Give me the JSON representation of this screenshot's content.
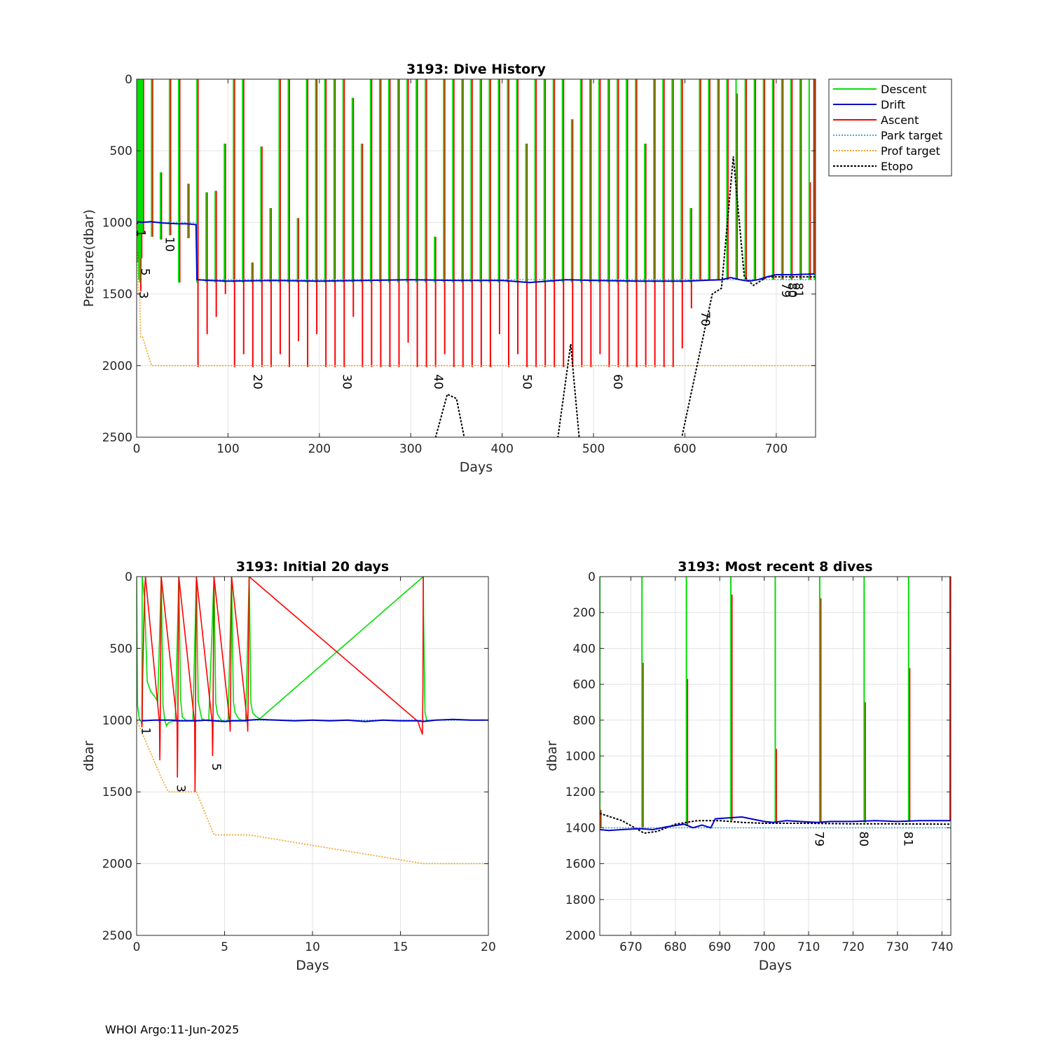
{
  "footer": "WHOI Argo:11-Jun-2025",
  "colors": {
    "descent": "#00e000",
    "drift": "#0000cc",
    "ascent": "#ff0000",
    "park": "#4aa8d8",
    "prof": "#f0a020",
    "etopo": "#000000"
  },
  "chart_data": [
    {
      "type": "line",
      "title": "3193: Dive History",
      "xlabel": "Days",
      "ylabel": "Pressure(dbar)",
      "xlim": [
        0,
        743
      ],
      "ylim": [
        2500,
        0
      ],
      "y_reversed": true,
      "xticks": [
        0,
        100,
        200,
        300,
        400,
        500,
        600,
        700
      ],
      "yticks": [
        0,
        500,
        1000,
        1500,
        2000,
        2500
      ],
      "grid": true,
      "legend": {
        "placement": "outside-top-right",
        "entries": [
          "Descent",
          "Drift",
          "Ascent",
          "Park target",
          "Prof target",
          "Etopo"
        ]
      },
      "series": [
        {
          "name": "Drift",
          "x": [
            0.3,
            2,
            6,
            15,
            30,
            45,
            55,
            65,
            66,
            80,
            100,
            150,
            200,
            250,
            300,
            350,
            400,
            430,
            470,
            500,
            550,
            600,
            640,
            650,
            660,
            670,
            680,
            690,
            700,
            720,
            742
          ],
          "y": [
            1010,
            995,
            1000,
            995,
            1005,
            1010,
            1010,
            1015,
            1400,
            1405,
            1410,
            1405,
            1410,
            1405,
            1400,
            1405,
            1405,
            1420,
            1400,
            1405,
            1410,
            1410,
            1400,
            1385,
            1400,
            1410,
            1400,
            1380,
            1365,
            1365,
            1360
          ]
        },
        {
          "name": "Prof target",
          "x": [
            0,
            1.8,
            3.4,
            4.4,
            6.4,
            16.3,
            40,
            742
          ],
          "y": [
            1000,
            1500,
            1500,
            1800,
            1800,
            2000,
            2000,
            2000
          ]
        },
        {
          "name": "Park target",
          "x": [
            0,
            66,
            66,
            742
          ],
          "y": [
            1000,
            1000,
            1400,
            1400
          ]
        },
        {
          "name": "Etopo",
          "x": [
            325,
            340,
            350,
            360,
            460,
            475,
            485,
            595,
            610,
            630,
            640,
            653,
            665,
            675,
            690,
            742
          ],
          "y": [
            2550,
            2200,
            2230,
            2550,
            2550,
            1850,
            2550,
            2550,
            2100,
            1500,
            1460,
            540,
            1380,
            1440,
            1380,
            1380
          ]
        }
      ],
      "cycles": {
        "days": [
          0.25,
          1.4,
          2.4,
          3.4,
          4.4,
          5.4,
          6.4,
          16.3,
          26,
          36,
          46,
          56,
          66,
          76,
          86,
          96,
          106,
          116,
          126,
          136,
          146,
          156,
          166,
          176,
          186,
          196,
          206,
          216,
          226,
          236,
          246,
          256,
          266,
          276,
          286,
          296,
          306,
          316,
          326,
          336,
          346,
          356,
          366,
          376,
          386,
          396,
          406,
          416,
          426,
          436,
          446,
          456,
          466,
          476,
          486,
          496,
          506,
          516,
          526,
          536,
          546,
          556,
          566,
          576,
          586,
          596,
          606,
          616,
          626,
          636,
          646,
          656,
          666,
          676,
          686,
          696,
          706,
          716,
          726,
          736,
          742
        ],
        "descent_min": [
          0,
          0,
          0,
          0,
          0,
          0,
          0,
          0,
          650,
          0,
          0,
          730,
          0,
          790,
          780,
          450,
          0,
          0,
          1280,
          470,
          900,
          0,
          0,
          970,
          0,
          0,
          0,
          0,
          0,
          130,
          450,
          0,
          0,
          0,
          0,
          0,
          0,
          0,
          1100,
          0,
          0,
          0,
          0,
          0,
          0,
          0,
          0,
          0,
          450,
          0,
          0,
          0,
          0,
          280,
          0,
          0,
          0,
          0,
          0,
          0,
          0,
          450,
          0,
          0,
          0,
          0,
          900,
          0,
          0,
          0,
          0,
          0,
          0,
          0,
          0,
          0,
          0,
          0,
          0,
          0,
          0
        ],
        "ascent_max": [
          1280,
          1200,
          1400,
          1480,
          1250,
          1080,
          1080,
          1100,
          1120,
          1090,
          1420,
          1110,
          2010,
          1780,
          1660,
          1500,
          2010,
          1920,
          2010,
          2010,
          2010,
          1920,
          2010,
          1830,
          2010,
          1780,
          2010,
          2010,
          2010,
          1660,
          2010,
          2010,
          2010,
          2010,
          2010,
          1840,
          2010,
          2010,
          2010,
          1920,
          2010,
          2010,
          2010,
          2010,
          2010,
          1780,
          2010,
          1920,
          2010,
          2010,
          2010,
          2010,
          2010,
          2010,
          2010,
          2010,
          1920,
          2010,
          2010,
          2010,
          2010,
          2010,
          2010,
          2010,
          2010,
          1880,
          1600,
          1400,
          1400,
          1400,
          1400,
          1400,
          1400,
          1400,
          1400,
          1400,
          1400,
          1400,
          1400,
          1400,
          0
        ],
        "ascent_min": [
          300,
          0,
          0,
          0,
          0,
          0,
          0,
          0,
          650,
          0,
          0,
          730,
          0,
          790,
          780,
          450,
          0,
          0,
          1280,
          470,
          900,
          0,
          0,
          970,
          0,
          0,
          0,
          0,
          0,
          130,
          450,
          0,
          0,
          0,
          0,
          0,
          0,
          0,
          1100,
          0,
          0,
          0,
          0,
          0,
          0,
          0,
          0,
          0,
          450,
          0,
          0,
          0,
          0,
          280,
          0,
          0,
          0,
          0,
          0,
          0,
          0,
          450,
          0,
          0,
          0,
          0,
          900,
          0,
          0,
          0,
          0,
          100,
          0,
          0,
          0,
          0,
          0,
          0,
          0,
          720,
          0
        ]
      },
      "annotations": [
        {
          "text": "1",
          "x": 0.2,
          "y": 1050
        },
        {
          "text": "5",
          "x": 5,
          "y": 1320
        },
        {
          "text": "3",
          "x": 3,
          "y": 1480
        },
        {
          "text": "10",
          "x": 32,
          "y": 1100
        },
        {
          "text": "20",
          "x": 128,
          "y": 2060
        },
        {
          "text": "30",
          "x": 226,
          "y": 2060
        },
        {
          "text": "40",
          "x": 326,
          "y": 2060
        },
        {
          "text": "50",
          "x": 423,
          "y": 2060
        },
        {
          "text": "60",
          "x": 522,
          "y": 2060
        },
        {
          "text": "70",
          "x": 618,
          "y": 1620
        },
        {
          "text": "79",
          "x": 706,
          "y": 1420
        },
        {
          "text": "80",
          "x": 713,
          "y": 1420
        },
        {
          "text": "81",
          "x": 720,
          "y": 1420
        }
      ]
    },
    {
      "type": "line",
      "title": "3193: Initial 20 days",
      "xlabel": "Days",
      "ylabel": "dbar",
      "xlim": [
        0,
        20
      ],
      "ylim": [
        2500,
        0
      ],
      "y_reversed": true,
      "xticks": [
        0,
        5,
        10,
        15,
        20
      ],
      "yticks": [
        0,
        500,
        1000,
        1500,
        2000,
        2500
      ],
      "grid": true,
      "series": [
        {
          "name": "Descent",
          "x": [
            0,
            0.05,
            0.15,
            0.25,
            0.3,
            0.32,
            0.45,
            0.6,
            0.8,
            1.0,
            1.2,
            1.4,
            1.42,
            1.5,
            1.6,
            1.7,
            1.8,
            2.0,
            2.2,
            2.4,
            2.42,
            2.5,
            2.6,
            2.8,
            3.0,
            3.2,
            3.4,
            3.42,
            3.5,
            3.7,
            3.9,
            4.1,
            4.4,
            4.42,
            4.5,
            4.6,
            4.8,
            5.0,
            5.2,
            5.4,
            5.42,
            5.5,
            5.6,
            5.8,
            6.0,
            6.2,
            6.4,
            6.42,
            6.5,
            6.6,
            6.8,
            7.0,
            16.3,
            16.32,
            16.4,
            16.5,
            16.7,
            16.9
          ],
          "y": [
            0,
            900,
            990,
            1010,
            1005,
            0,
            150,
            730,
            800,
            830,
            870,
            0,
            150,
            900,
            1000,
            1040,
            1020,
            1010,
            1005,
            0,
            150,
            860,
            980,
            1000,
            1005,
            1000,
            0,
            150,
            870,
            990,
            1000,
            1005,
            0,
            150,
            880,
            960,
            1000,
            1010,
            1010,
            0,
            150,
            870,
            950,
            990,
            1000,
            1010,
            0,
            150,
            880,
            950,
            975,
            990,
            0,
            300,
            950,
            1000,
            1005,
            1000
          ]
        },
        {
          "name": "Drift",
          "x": [
            0.3,
            1.0,
            1.4,
            2.0,
            2.4,
            3.0,
            3.4,
            4.0,
            4.4,
            5.0,
            5.4,
            6.0,
            6.4,
            7.0,
            8,
            9,
            10,
            11,
            12,
            13,
            14,
            15,
            16,
            16.3,
            17,
            18,
            19,
            20
          ],
          "y": [
            1005,
            1000,
            1000,
            1000,
            1005,
            1005,
            1005,
            1000,
            1005,
            1010,
            1005,
            1005,
            1000,
            995,
            1000,
            1005,
            1000,
            1005,
            1000,
            1010,
            1000,
            1005,
            1005,
            1010,
            1000,
            995,
            1000,
            1000
          ]
        },
        {
          "name": "Ascent",
          "x": [
            0.28,
            0.3,
            0.32,
            0.34,
            0.36,
            0.38,
            0.4,
            0.42,
            0.44,
            0.46,
            0.48,
            0.5,
            1.3,
            1.32,
            1.34,
            1.36,
            1.38,
            1.4,
            2.3,
            2.32,
            2.34,
            2.36,
            2.38,
            2.4,
            3.3,
            3.32,
            3.34,
            3.36,
            3.38,
            3.4,
            4.3,
            4.32,
            4.34,
            4.36,
            4.38,
            4.4,
            5.3,
            5.32,
            5.34,
            5.36,
            5.38,
            5.4,
            6.3,
            6.32,
            6.34,
            6.36,
            6.38,
            6.4,
            16.0,
            16.1,
            16.2,
            16.25,
            16.28,
            16.3
          ],
          "y": [
            1010,
            1050,
            1000,
            700,
            600,
            500,
            400,
            300,
            200,
            100,
            50,
            0,
            1020,
            1280,
            1100,
            700,
            300,
            0,
            1020,
            1400,
            1150,
            700,
            300,
            0,
            1020,
            1500,
            1300,
            700,
            300,
            0,
            1020,
            1250,
            1100,
            700,
            300,
            0,
            1020,
            1080,
            900,
            600,
            300,
            0,
            1020,
            1080,
            900,
            600,
            300,
            0,
            1010,
            1050,
            1080,
            1100,
            800,
            0
          ]
        },
        {
          "name": "Prof target",
          "x": [
            0,
            1.4,
            1.8,
            3.4,
            4.4,
            6.4,
            16.3,
            20
          ],
          "y": [
            1000,
            1400,
            1500,
            1500,
            1800,
            1800,
            2000,
            2000
          ]
        },
        {
          "name": "Park target",
          "x": [
            0,
            20
          ],
          "y": [
            1000,
            1000
          ]
        }
      ],
      "annotations": [
        {
          "text": "1",
          "x": 0.3,
          "y": 1050
        },
        {
          "text": "3",
          "x": 2.3,
          "y": 1450
        },
        {
          "text": "5",
          "x": 4.3,
          "y": 1300
        }
      ]
    },
    {
      "type": "line",
      "title": "3193: Most recent 8 dives",
      "xlabel": "Days",
      "ylabel": "dbar",
      "xlim": [
        663,
        742
      ],
      "ylim": [
        2000,
        0
      ],
      "y_reversed": true,
      "xticks": [
        670,
        680,
        690,
        700,
        710,
        720,
        730,
        740
      ],
      "yticks": [
        0,
        200,
        400,
        600,
        800,
        1000,
        1200,
        1400,
        1600,
        1800,
        2000
      ],
      "grid": true,
      "cycles": {
        "days": [
          663,
          672.5,
          682.5,
          692.5,
          702.5,
          712.5,
          722.5,
          732.5,
          742
        ],
        "descent_min": [
          0,
          0,
          0,
          0,
          0,
          0,
          0,
          0,
          0
        ],
        "ascent_max": [
          1400,
          1400,
          1390,
          1360,
          1370,
          1370,
          1370,
          1365,
          1360
        ],
        "ascent_min": [
          1300,
          480,
          570,
          100,
          960,
          120,
          700,
          510,
          0
        ]
      },
      "series": [
        {
          "name": "Drift",
          "x": [
            663,
            665,
            668,
            672,
            675,
            678,
            682,
            684,
            686,
            688,
            689,
            692,
            695,
            698,
            700,
            702,
            705,
            708,
            712,
            715,
            720,
            725,
            730,
            735,
            742
          ],
          "y": [
            1410,
            1415,
            1410,
            1405,
            1410,
            1395,
            1380,
            1400,
            1385,
            1400,
            1350,
            1345,
            1340,
            1355,
            1365,
            1370,
            1360,
            1365,
            1370,
            1365,
            1365,
            1360,
            1365,
            1360,
            1360
          ]
        },
        {
          "name": "Park target",
          "x": [
            663,
            742
          ],
          "y": [
            1400,
            1400
          ]
        },
        {
          "name": "Prof target",
          "x": [
            663,
            742
          ],
          "y": [
            2000,
            2000
          ]
        },
        {
          "name": "Etopo",
          "x": [
            663,
            668,
            673,
            676,
            680,
            685,
            690,
            695,
            700,
            710,
            720,
            730,
            742
          ],
          "y": [
            1320,
            1360,
            1430,
            1420,
            1380,
            1360,
            1360,
            1370,
            1375,
            1375,
            1378,
            1378,
            1380
          ]
        }
      ],
      "annotations": [
        {
          "text": "79",
          "x": 711.5,
          "y": 1420
        },
        {
          "text": "80",
          "x": 721.5,
          "y": 1420
        },
        {
          "text": "81",
          "x": 731.5,
          "y": 1420
        }
      ]
    }
  ]
}
